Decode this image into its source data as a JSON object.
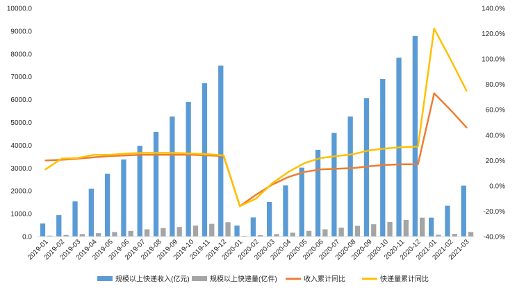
{
  "chart_data": {
    "type": "bar",
    "categories": [
      "2019-01",
      "2019-02",
      "2019-03",
      "2019-04",
      "2019-05",
      "2019-06",
      "2019-07",
      "2019-08",
      "2019-09",
      "2019-10",
      "2019-11",
      "2019-12",
      "2020-01",
      "2020-02",
      "2020-03",
      "2020-04",
      "2020-05",
      "2020-06",
      "2020-07",
      "2020-08",
      "2020-09",
      "2020-10",
      "2020-11",
      "2020-12",
      "2021-01",
      "2021-02",
      "2021-03"
    ],
    "series": [
      {
        "name": "规模以上快递收入(亿元)",
        "type": "bar",
        "axis": "left",
        "color": "#5B9BD5",
        "values": [
          570,
          940,
          1540,
          2100,
          2750,
          3380,
          3980,
          4590,
          5260,
          5900,
          6720,
          7490,
          480,
          840,
          1520,
          2240,
          3020,
          3800,
          4540,
          5260,
          6070,
          6900,
          7840,
          8790,
          830,
          1350,
          2230
        ]
      },
      {
        "name": "规模以上快递量(亿件)",
        "type": "bar",
        "axis": "left",
        "color": "#A5A5A5",
        "values": [
          40,
          70,
          110,
          150,
          200,
          250,
          320,
          370,
          420,
          480,
          560,
          630,
          30,
          60,
          110,
          170,
          250,
          320,
          390,
          470,
          540,
          640,
          730,
          830,
          80,
          120,
          200
        ]
      },
      {
        "name": "收入累计同比",
        "type": "line",
        "axis": "right",
        "color": "#ED7D31",
        "values": [
          20,
          20.5,
          21.5,
          22.5,
          23.5,
          24,
          24.5,
          24.5,
          24.5,
          24.5,
          24,
          23.5,
          -16,
          -7,
          1,
          7,
          11,
          13,
          13.5,
          14,
          15.5,
          16.5,
          17,
          17,
          73,
          60,
          46
        ]
      },
      {
        "name": "快递量累计同比",
        "type": "line",
        "axis": "right",
        "color": "#FFC000",
        "values": [
          13,
          21.5,
          22,
          24.5,
          24.5,
          25.5,
          26,
          26,
          26,
          25.5,
          25,
          24,
          -16,
          -10,
          2,
          11,
          18,
          22,
          23.5,
          25,
          28,
          29.5,
          30.5,
          31,
          124,
          100,
          75
        ]
      }
    ],
    "y_left": {
      "min": 0,
      "max": 10000,
      "step": 1000,
      "ticks": [
        "0.0",
        "1000.0",
        "2000.0",
        "3000.0",
        "4000.0",
        "5000.0",
        "6000.0",
        "7000.0",
        "8000.0",
        "9000.0",
        "10000.0"
      ]
    },
    "y_right": {
      "min": -40,
      "max": 140,
      "step": 20,
      "ticks": [
        "-40.0%",
        "-20.0%",
        "0.0%",
        "20.0%",
        "40.0%",
        "60.0%",
        "80.0%",
        "100.0%",
        "120.0%",
        "140.0%"
      ]
    },
    "legend_position": "bottom",
    "grid": false
  }
}
